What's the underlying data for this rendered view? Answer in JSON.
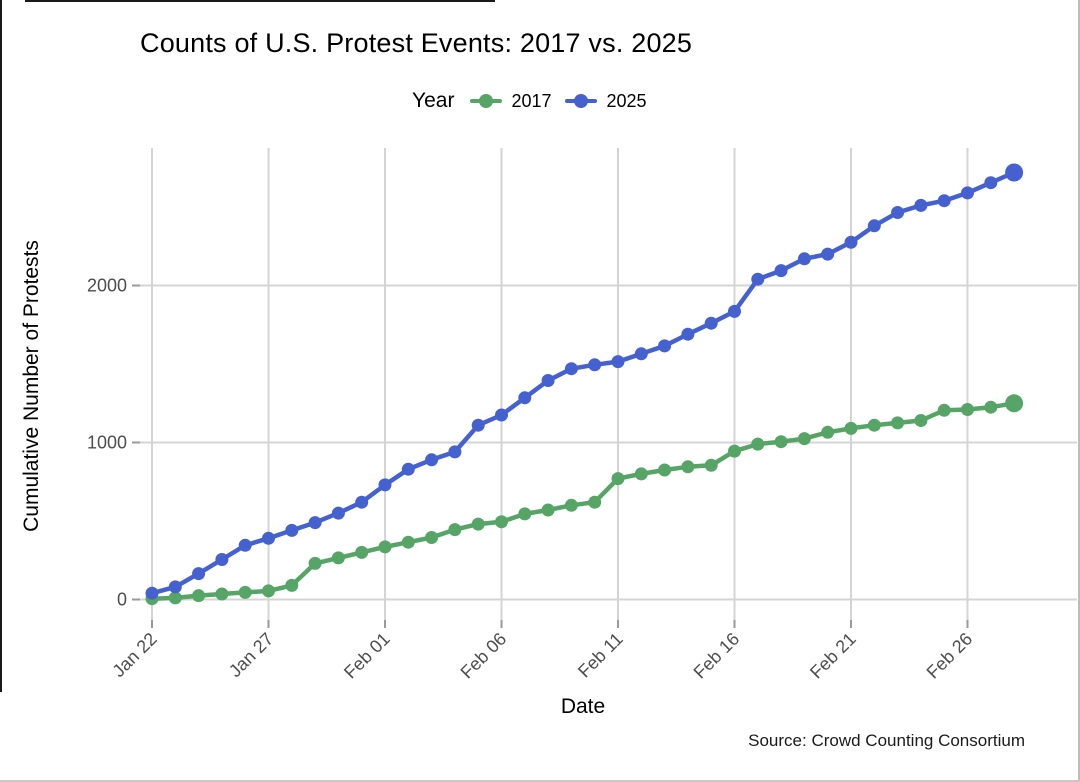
{
  "page": {
    "title": "Counts of U.S. Protest Events: 2017 vs. 2025",
    "source": "Source: Crowd Counting Consortium"
  },
  "chart_data": {
    "type": "line",
    "title": "Counts of U.S. Protest Events: 2017 vs. 2025",
    "xlabel": "Date",
    "ylabel": "Cumulative Number of Protests",
    "legend_title": "Year",
    "legend_position": "top-center",
    "grid": true,
    "annotation": "Source: Crowd Counting Consortium",
    "x": [
      "Jan 22",
      "Jan 23",
      "Jan 24",
      "Jan 25",
      "Jan 26",
      "Jan 27",
      "Jan 28",
      "Jan 29",
      "Jan 30",
      "Jan 31",
      "Feb 01",
      "Feb 02",
      "Feb 03",
      "Feb 04",
      "Feb 05",
      "Feb 06",
      "Feb 07",
      "Feb 08",
      "Feb 09",
      "Feb 10",
      "Feb 11",
      "Feb 12",
      "Feb 13",
      "Feb 14",
      "Feb 15",
      "Feb 16",
      "Feb 17",
      "Feb 18",
      "Feb 19",
      "Feb 20",
      "Feb 21",
      "Feb 22",
      "Feb 23",
      "Feb 24",
      "Feb 25",
      "Feb 26",
      "Feb 27",
      "Feb 28"
    ],
    "x_tick_labels": [
      "Jan 22",
      "Jan 27",
      "Feb 01",
      "Feb 06",
      "Feb 11",
      "Feb 16",
      "Feb 21",
      "Feb 26"
    ],
    "x_tick_indices": [
      0,
      5,
      10,
      15,
      20,
      25,
      30,
      35
    ],
    "y_ticks": [
      0,
      1000,
      2000
    ],
    "ylim": [
      0,
      2870
    ],
    "series": [
      {
        "name": "2017",
        "color": "#56a567",
        "values": [
          5,
          10,
          25,
          35,
          45,
          55,
          90,
          230,
          265,
          300,
          335,
          365,
          395,
          445,
          480,
          495,
          545,
          570,
          600,
          620,
          770,
          800,
          825,
          845,
          855,
          945,
          990,
          1005,
          1025,
          1065,
          1090,
          1110,
          1125,
          1140,
          1205,
          1210,
          1225,
          1250
        ]
      },
      {
        "name": "2025",
        "color": "#4561cf",
        "values": [
          40,
          80,
          165,
          255,
          345,
          390,
          440,
          490,
          550,
          620,
          730,
          830,
          890,
          940,
          1110,
          1175,
          1285,
          1395,
          1470,
          1495,
          1515,
          1565,
          1615,
          1690,
          1760,
          1835,
          2040,
          2095,
          2170,
          2200,
          2275,
          2380,
          2465,
          2510,
          2540,
          2590,
          2655,
          2720
        ]
      }
    ],
    "colors": {
      "gridline": "#d4d4d4",
      "tick_label": "#4d4d4d",
      "panel_background": "#ffffff"
    }
  }
}
